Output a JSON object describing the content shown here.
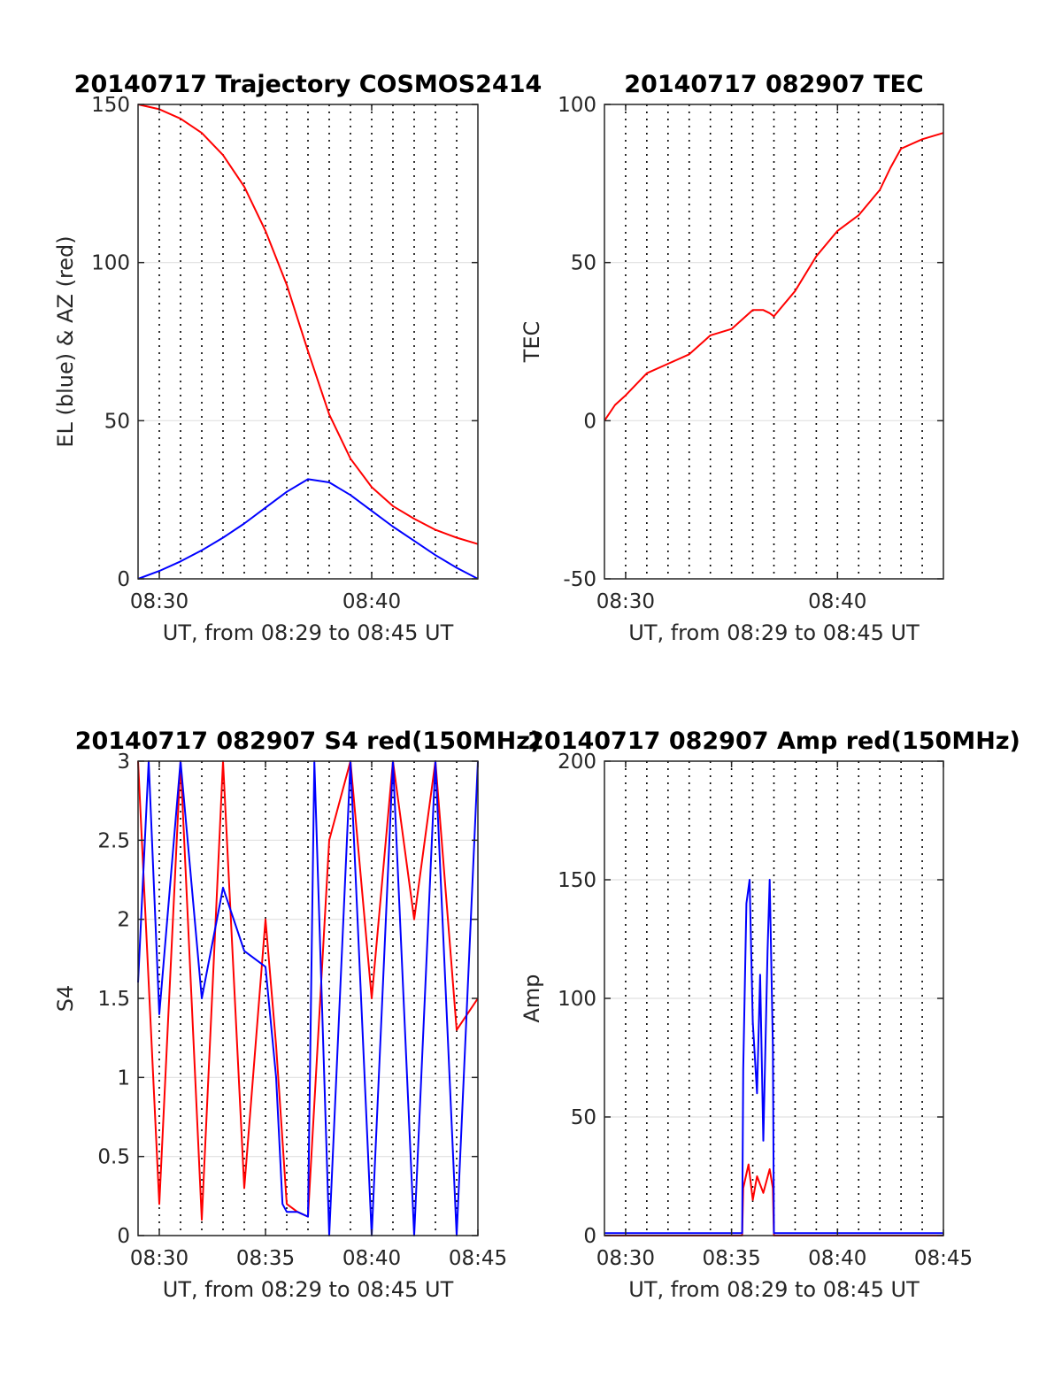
{
  "chart_data": [
    {
      "type": "line",
      "title": "20140717 Trajectory COSMOS2414",
      "xlabel": "UT, from 08:29 to 08:45 UT",
      "ylabel": "EL (blue) & AZ (red)",
      "xlim_minutes": [
        509,
        525
      ],
      "ylim": [
        0,
        150
      ],
      "xticks": [
        {
          "v": 510,
          "label": "08:30"
        },
        {
          "v": 520,
          "label": "08:40"
        }
      ],
      "yticks": [
        {
          "v": 0,
          "label": "0"
        },
        {
          "v": 50,
          "label": "50"
        },
        {
          "v": 100,
          "label": "100"
        },
        {
          "v": 150,
          "label": "150"
        }
      ],
      "grid": true,
      "series": [
        {
          "color": "#ff0000",
          "x": [
            509,
            510,
            511,
            512,
            513,
            514,
            515,
            516,
            517,
            518,
            519,
            520,
            521,
            522,
            523,
            524,
            525
          ],
          "y": [
            150,
            148.5,
            145.5,
            141,
            134,
            124,
            110,
            93,
            72,
            52,
            38,
            29,
            23,
            19,
            15.5,
            13,
            11
          ]
        },
        {
          "color": "#0000ff",
          "x": [
            509,
            510,
            511,
            512,
            513,
            514,
            515,
            516,
            517,
            518,
            519,
            520,
            521,
            522,
            523,
            524,
            525
          ],
          "y": [
            0,
            2.5,
            5.5,
            9,
            13,
            17.5,
            22.5,
            27.5,
            31.5,
            30.5,
            26.5,
            21.5,
            16.5,
            12,
            7.5,
            3.5,
            0
          ]
        }
      ]
    },
    {
      "type": "line",
      "title": "20140717 082907 TEC",
      "xlabel": "UT, from 08:29 to 08:45 UT",
      "ylabel": "TEC",
      "xlim_minutes": [
        509,
        525
      ],
      "ylim": [
        -50,
        100
      ],
      "xticks": [
        {
          "v": 510,
          "label": "08:30"
        },
        {
          "v": 520,
          "label": "08:40"
        }
      ],
      "yticks": [
        {
          "v": -50,
          "label": "-50"
        },
        {
          "v": 0,
          "label": "0"
        },
        {
          "v": 50,
          "label": "50"
        },
        {
          "v": 100,
          "label": "100"
        }
      ],
      "grid": true,
      "series": [
        {
          "color": "#ff0000",
          "x": [
            509.0,
            509.5,
            510.0,
            511.0,
            512.0,
            513.0,
            514.0,
            515.0,
            516.0,
            516.5,
            516.8,
            517.0,
            518.0,
            519.0,
            520.0,
            521.0,
            522.0,
            522.5,
            523.0,
            524.0,
            525.0
          ],
          "y": [
            0,
            5,
            8,
            15,
            18,
            21,
            27,
            29,
            35,
            35,
            34,
            33,
            41,
            52,
            60,
            65,
            73,
            80,
            86,
            89,
            91
          ]
        }
      ]
    },
    {
      "type": "line",
      "title": "20140717 082907 S4 red(150MHz)",
      "xlabel": "UT, from 08:29 to 08:45 UT",
      "ylabel": "S4",
      "xlim_minutes": [
        509,
        525
      ],
      "ylim": [
        0,
        3
      ],
      "xticks": [
        {
          "v": 510,
          "label": "08:30"
        },
        {
          "v": 515,
          "label": "08:35"
        },
        {
          "v": 520,
          "label": "08:40"
        },
        {
          "v": 525,
          "label": "08:45"
        }
      ],
      "yticks": [
        {
          "v": 0,
          "label": "0"
        },
        {
          "v": 0.5,
          "label": "0.5"
        },
        {
          "v": 1,
          "label": "1"
        },
        {
          "v": 1.5,
          "label": "1.5"
        },
        {
          "v": 2,
          "label": "2"
        },
        {
          "v": 2.5,
          "label": "2.5"
        },
        {
          "v": 3,
          "label": "3"
        }
      ],
      "grid": true,
      "series": [
        {
          "color": "#ff0000",
          "x": [
            509.0,
            510.0,
            511.0,
            512.0,
            513.0,
            514.0,
            515.0,
            515.5,
            516.0,
            516.5,
            517.0,
            518.0,
            519.0,
            520.0,
            521.0,
            522.0,
            523.0,
            524.0,
            525.0
          ],
          "y": [
            3.0,
            0.2,
            3.0,
            0.1,
            3.0,
            0.3,
            2.0,
            1.2,
            0.2,
            0.15,
            0.12,
            2.5,
            3.0,
            1.5,
            3.0,
            2.0,
            3.0,
            1.3,
            1.5
          ]
        },
        {
          "color": "#0000ff",
          "x": [
            509.0,
            509.5,
            510.0,
            511.0,
            512.0,
            513.0,
            514.0,
            515.0,
            515.5,
            515.8,
            516.0,
            516.5,
            517.0,
            517.3,
            518.0,
            519.0,
            520.0,
            521.0,
            522.0,
            523.0,
            524.0,
            525.0
          ],
          "y": [
            1.6,
            3.0,
            1.4,
            3.0,
            1.5,
            2.2,
            1.8,
            1.7,
            1.0,
            0.2,
            0.15,
            0.15,
            0.12,
            3.0,
            0.0,
            3.0,
            0.0,
            3.0,
            0.0,
            3.0,
            0.0,
            3.0
          ]
        }
      ]
    },
    {
      "type": "line",
      "title": "20140717 082907 Amp red(150MHz)",
      "xlabel": "UT, from 08:29 to 08:45 UT",
      "ylabel": "Amp",
      "xlim_minutes": [
        509,
        525
      ],
      "ylim": [
        0,
        200
      ],
      "xticks": [
        {
          "v": 510,
          "label": "08:30"
        },
        {
          "v": 515,
          "label": "08:35"
        },
        {
          "v": 520,
          "label": "08:40"
        },
        {
          "v": 525,
          "label": "08:45"
        }
      ],
      "yticks": [
        {
          "v": 0,
          "label": "0"
        },
        {
          "v": 50,
          "label": "50"
        },
        {
          "v": 100,
          "label": "100"
        },
        {
          "v": 150,
          "label": "150"
        },
        {
          "v": 200,
          "label": "200"
        }
      ],
      "grid": true,
      "series": [
        {
          "color": "#ff0000",
          "x": [
            509.0,
            515.5,
            515.55,
            515.8,
            516.0,
            516.2,
            516.5,
            516.8,
            516.95,
            517.0,
            525.0
          ],
          "y": [
            0,
            0,
            20,
            30,
            15,
            25,
            18,
            28,
            20,
            0,
            0
          ]
        },
        {
          "color": "#0000ff",
          "x": [
            509.0,
            515.5,
            515.55,
            515.7,
            515.85,
            516.0,
            516.2,
            516.35,
            516.5,
            516.7,
            516.8,
            516.95,
            517.0,
            525.0
          ],
          "y": [
            1,
            1,
            70,
            140,
            150,
            90,
            60,
            110,
            40,
            120,
            150,
            80,
            1,
            1
          ]
        }
      ]
    }
  ]
}
